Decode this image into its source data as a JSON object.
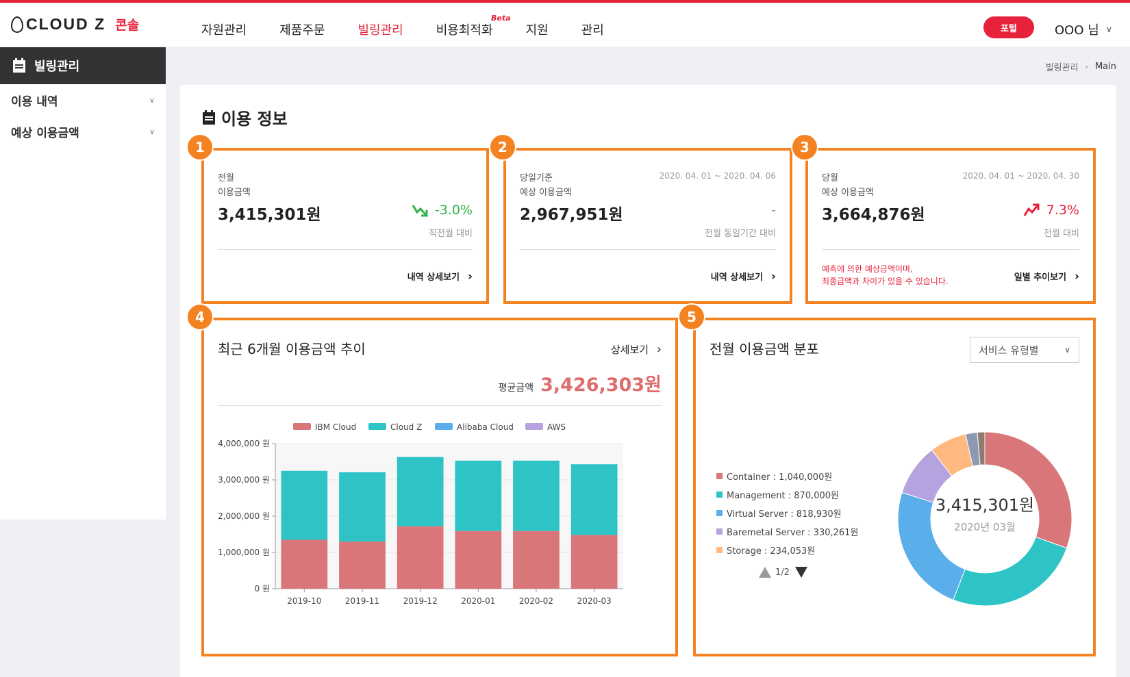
{
  "header": {
    "brand": "CLOUD Z",
    "console_label": "콘솔",
    "nav": [
      {
        "label": "자원관리",
        "active": false
      },
      {
        "label": "제품주문",
        "active": false
      },
      {
        "label": "빌링관리",
        "active": true
      },
      {
        "label": "비용최적화",
        "active": false,
        "tag": "Beta"
      },
      {
        "label": "지원",
        "active": false
      },
      {
        "label": "관리",
        "active": false
      }
    ],
    "portal_button": "포털",
    "user": "OOO 님"
  },
  "sidebar": {
    "title": "빌링관리",
    "items": [
      {
        "label": "이용 내역"
      },
      {
        "label": "예상 이용금액"
      }
    ]
  },
  "breadcrumb": {
    "parent": "빌링관리",
    "current": "Main"
  },
  "section_title": "이용 정보",
  "cards": [
    {
      "badge": "1",
      "label_line1": "전월",
      "label_line2": "이용금액",
      "period": "",
      "amount": "3,415,301원",
      "change": "-3.0%",
      "trend": "down",
      "compare": "직전월 대비",
      "notice_line1": "",
      "notice_line2": "",
      "detail_link": "내역 상세보기"
    },
    {
      "badge": "2",
      "label_line1": "당일기준",
      "label_line2": "예상 이용금액",
      "period": "2020. 04. 01 ~ 2020. 04. 06",
      "amount": "2,967,951원",
      "change": "-",
      "trend": "flat",
      "compare": "전월 동일기간 대비",
      "notice_line1": "",
      "notice_line2": "",
      "detail_link": "내역 상세보기"
    },
    {
      "badge": "3",
      "label_line1": "당월",
      "label_line2": "예상 이용금액",
      "period": "2020. 04. 01 ~ 2020. 04. 30",
      "amount": "3,664,876원",
      "change": "7.3%",
      "trend": "up",
      "compare": "전월 대비",
      "notice_line1": "예측에 의한 예상금액이며,",
      "notice_line2": "최종금액과 차이가 있을 수 있습니다.",
      "detail_link": "일별 추이보기"
    }
  ],
  "trend_panel": {
    "badge": "4",
    "title": "최근 6개월 이용금액 추이",
    "more_link": "상세보기",
    "avg_label": "평균금액",
    "avg_value": "3,426,303원"
  },
  "dist_panel": {
    "badge": "5",
    "title": "전월 이용금액 분포",
    "select_value": "서비스 유형별",
    "legend": [
      {
        "label": "Container : 1,040,000원",
        "color": "#d9767a"
      },
      {
        "label": "Management : 870,000원",
        "color": "#2ec4c6"
      },
      {
        "label": "Virtual Server : 818,930원",
        "color": "#5aaeea"
      },
      {
        "label": "Baremetal Server : 330,261원",
        "color": "#b6a2de"
      },
      {
        "label": "Storage : 234,053원",
        "color": "#ffb980"
      }
    ],
    "pager": "1/2",
    "center_total": "3,415,301원",
    "center_period": "2020년 03월"
  },
  "chart_data": [
    {
      "type": "bar",
      "stacked": true,
      "categories": [
        "2019-10",
        "2019-11",
        "2019-12",
        "2020-01",
        "2020-02",
        "2020-03"
      ],
      "series": [
        {
          "name": "IBM Cloud",
          "color": "#d9767a",
          "values": [
            1350000,
            1300000,
            1720000,
            1590000,
            1590000,
            1480000
          ]
        },
        {
          "name": "Cloud Z",
          "color": "#2ec4c6",
          "values": [
            1900000,
            1910000,
            1910000,
            1940000,
            1940000,
            1950000
          ]
        },
        {
          "name": "Alibaba Cloud",
          "color": "#5aaeea",
          "values": [
            0,
            0,
            0,
            0,
            0,
            0
          ]
        },
        {
          "name": "AWS",
          "color": "#b6a2de",
          "values": [
            0,
            0,
            0,
            0,
            0,
            0
          ]
        }
      ],
      "ytick_labels": [
        "0 원",
        "1,000,000 원",
        "2,000,000 원",
        "3,000,000 원",
        "4,000,000 원"
      ],
      "ylim": [
        0,
        4000000
      ],
      "legend_position": "top"
    },
    {
      "type": "pie",
      "donut": true,
      "slices": [
        {
          "name": "Container",
          "value": 1040000,
          "color": "#d9767a"
        },
        {
          "name": "Management",
          "value": 870000,
          "color": "#2ec4c6"
        },
        {
          "name": "Virtual Server",
          "value": 818930,
          "color": "#5aaeea"
        },
        {
          "name": "Baremetal Server",
          "value": 330261,
          "color": "#b6a2de"
        },
        {
          "name": "Storage",
          "value": 234053,
          "color": "#ffb980"
        },
        {
          "name": "",
          "value": 75000,
          "color": "#8d98b3"
        },
        {
          "name": "",
          "value": 47057,
          "color": "#8d7b6f"
        }
      ]
    }
  ]
}
